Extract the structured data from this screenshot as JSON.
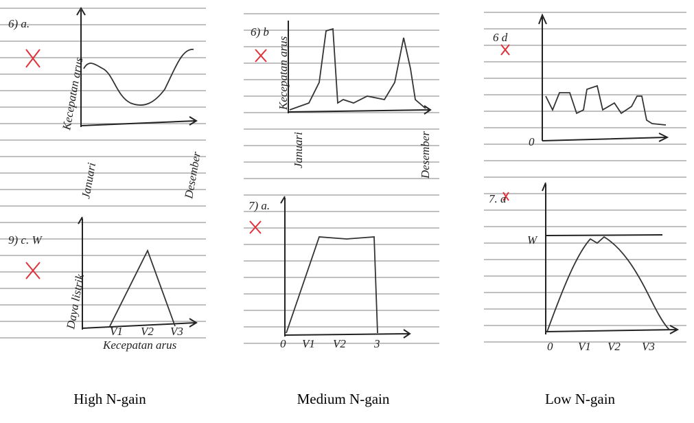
{
  "panels": [
    {
      "caption": "High N-gain",
      "sketches": [
        {
          "label": "6) a.",
          "y_label": "Kecepatan arus",
          "x_labels": [
            "Januari",
            "Desember"
          ]
        },
        {
          "label": "9) c. W",
          "y_label": "Daya listrik",
          "x_labels": [
            "V1",
            "V2",
            "V3"
          ],
          "x_title": "Kecepatan arus"
        }
      ]
    },
    {
      "caption": "Medium N-gain",
      "sketches": [
        {
          "label": "6) b",
          "y_label": "Kecepatan arus",
          "x_labels": [
            "Januari",
            "Desember"
          ]
        },
        {
          "label": "7) a.",
          "x_labels": [
            "0",
            "V1",
            "V2",
            "3"
          ]
        }
      ]
    },
    {
      "caption": "Low N-gain",
      "sketches": [
        {
          "label": "6 d",
          "x_labels": [
            "0"
          ]
        },
        {
          "label": "7. a",
          "y_label": "W",
          "x_labels": [
            "0",
            "V1",
            "V2",
            "V3"
          ]
        }
      ]
    }
  ]
}
